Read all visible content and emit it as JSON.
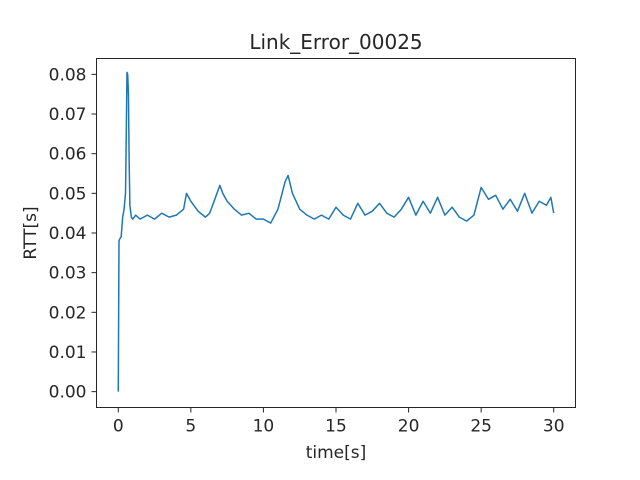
{
  "chart_data": {
    "type": "line",
    "title": "Link_Error_00025",
    "xlabel": "time[s]",
    "ylabel": "RTT[s]",
    "xlim": [
      -1.5,
      31.5
    ],
    "ylim": [
      -0.004,
      0.084
    ],
    "x_ticks": [
      0,
      5,
      10,
      15,
      20,
      25,
      30
    ],
    "y_ticks": [
      0.0,
      0.01,
      0.02,
      0.03,
      0.04,
      0.05,
      0.06,
      0.07,
      0.08
    ],
    "x_tick_labels": [
      "0",
      "5",
      "10",
      "15",
      "20",
      "25",
      "30"
    ],
    "y_tick_labels": [
      "0.00",
      "0.01",
      "0.02",
      "0.03",
      "0.04",
      "0.05",
      "0.06",
      "0.07",
      "0.08"
    ],
    "grid": false,
    "line_color": "#1f77b4",
    "series": [
      {
        "x": [
          0.0,
          0.05,
          0.1,
          0.2,
          0.3,
          0.4,
          0.5,
          0.55,
          0.6,
          0.65,
          0.7,
          0.75,
          0.8,
          0.9,
          1.0,
          1.2,
          1.5,
          2.0,
          2.5,
          3.0,
          3.5,
          4.0,
          4.5,
          4.7,
          5.0,
          5.5,
          6.0,
          6.3,
          6.7,
          7.0,
          7.2,
          7.5,
          8.0,
          8.5,
          9.0,
          9.5,
          10.0,
          10.5,
          11.0,
          11.5,
          11.7,
          12.0,
          12.5,
          13.0,
          13.5,
          14.0,
          14.5,
          15.0,
          15.5,
          16.0,
          16.5,
          17.0,
          17.5,
          18.0,
          18.5,
          19.0,
          19.5,
          20.0,
          20.5,
          21.0,
          21.5,
          22.0,
          22.5,
          23.0,
          23.5,
          24.0,
          24.5,
          25.0,
          25.5,
          26.0,
          26.5,
          27.0,
          27.5,
          28.0,
          28.5,
          29.0,
          29.5,
          29.8,
          30.0
        ],
        "y": [
          0.0,
          0.038,
          0.0385,
          0.039,
          0.044,
          0.046,
          0.05,
          0.065,
          0.0805,
          0.08,
          0.075,
          0.058,
          0.047,
          0.044,
          0.0435,
          0.0445,
          0.0435,
          0.0445,
          0.0435,
          0.045,
          0.044,
          0.0445,
          0.046,
          0.05,
          0.048,
          0.0455,
          0.044,
          0.045,
          0.049,
          0.052,
          0.05,
          0.048,
          0.046,
          0.0445,
          0.045,
          0.0435,
          0.0435,
          0.0425,
          0.046,
          0.053,
          0.0545,
          0.05,
          0.046,
          0.0445,
          0.0435,
          0.0445,
          0.0435,
          0.0465,
          0.0445,
          0.0435,
          0.0475,
          0.0445,
          0.0455,
          0.0475,
          0.045,
          0.044,
          0.046,
          0.049,
          0.0445,
          0.048,
          0.045,
          0.049,
          0.0445,
          0.0465,
          0.044,
          0.043,
          0.0445,
          0.0515,
          0.0485,
          0.0495,
          0.046,
          0.0485,
          0.0455,
          0.05,
          0.045,
          0.048,
          0.047,
          0.049,
          0.045
        ]
      }
    ]
  }
}
